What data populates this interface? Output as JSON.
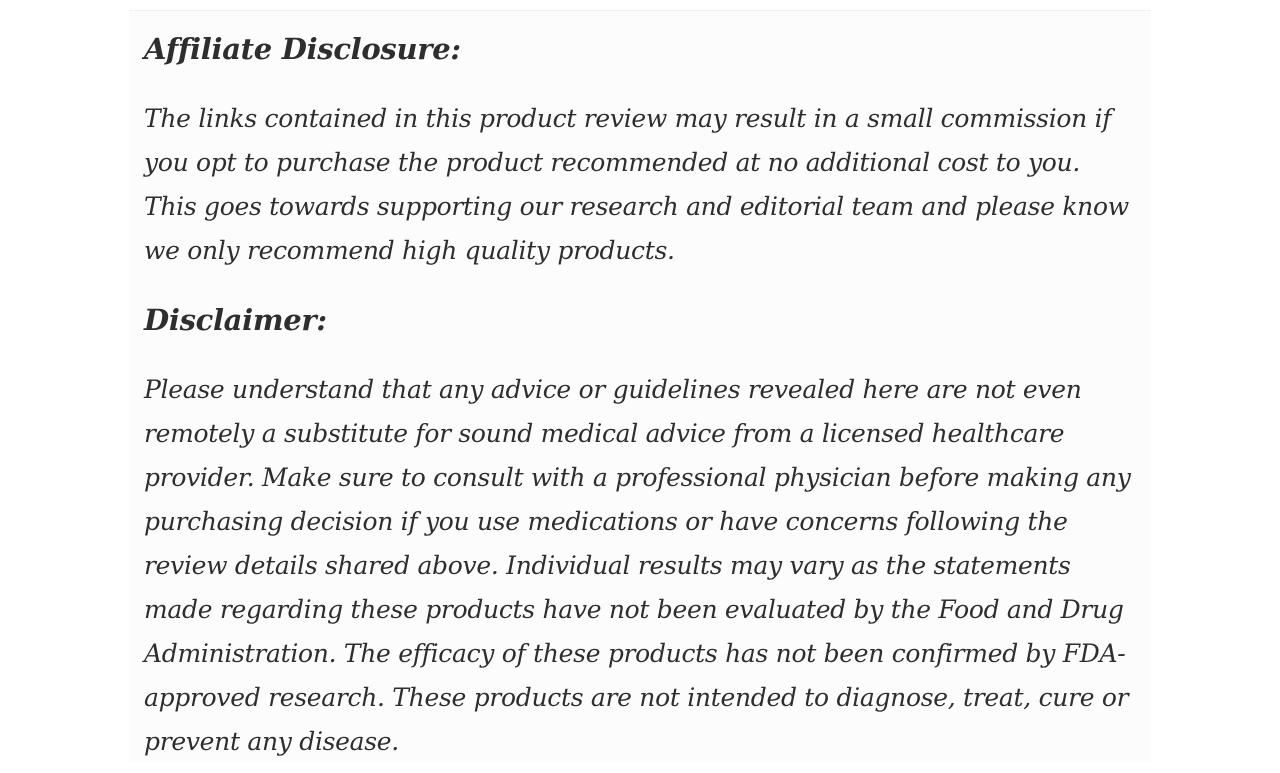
{
  "article": {
    "sections": [
      {
        "heading": "Affiliate Disclosure:",
        "body": "The links contained in this product review may result in a small commission if you opt to purchase the product recommended at no additional cost to you. This goes towards supporting our research and editorial team and please know we only recommend high quality products."
      },
      {
        "heading": "Disclaimer:",
        "body": "Please understand that any advice or guidelines revealed here are not even remotely a substitute for sound medical advice from a licensed healthcare provider. Make sure to consult with a professional physician before making any purchasing decision if you use medications or have concerns following the review details shared above. Individual results may vary as the statements made regarding these products have not been evaluated by the Food and Drug Administration. The efficacy of these products has not been confirmed by FDA-approved research. These products are not intended to diagnose, treat, cure or prevent any disease."
      }
    ],
    "colors": {
      "text": "#2e2e2e",
      "page_background": "#ffffff",
      "card_background": "#fcfcfc",
      "top_divider": "#f1f1f1"
    }
  }
}
